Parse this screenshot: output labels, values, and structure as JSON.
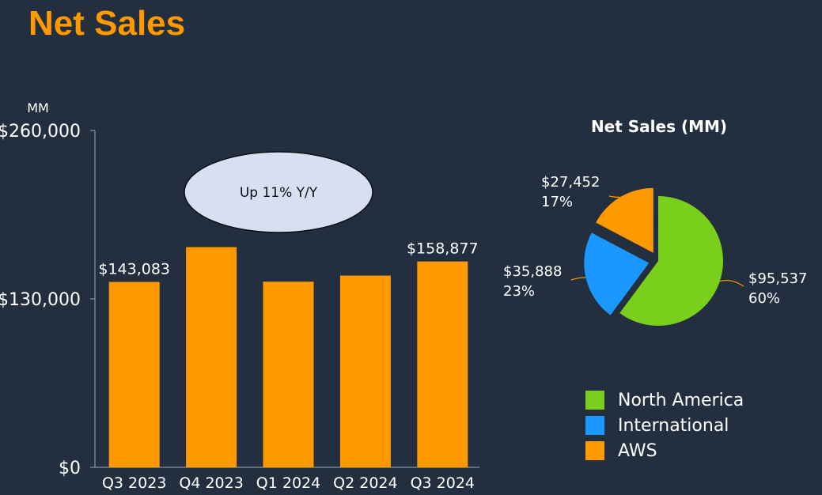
{
  "page_title": "Net Sales",
  "chart_data": [
    {
      "type": "bar",
      "unit_label": "MM",
      "categories": [
        "Q3 2023",
        "Q4 2023",
        "Q1 2024",
        "Q2 2024",
        "Q3 2024"
      ],
      "values": [
        143083,
        169961,
        143313,
        147977,
        158877
      ],
      "data_labels": [
        "$143,083",
        "",
        "",
        "",
        "$158,877"
      ],
      "ylim": [
        0,
        260000
      ],
      "yticks": [
        0,
        130000,
        260000
      ],
      "ytick_labels": [
        "$0",
        "$130,000",
        "$260,000"
      ],
      "bar_color": "#ff9900",
      "annotation": "Up 11% Y/Y",
      "annotation_color": "#d7e0f0",
      "grid": false
    },
    {
      "type": "pie",
      "title": "Net Sales (MM)",
      "slices": [
        {
          "name": "North America",
          "value": 95537,
          "value_label": "$95,537",
          "percent_label": "60%",
          "color": "#7ace1c",
          "exploded": false
        },
        {
          "name": "International",
          "value": 35888,
          "value_label": "$35,888",
          "percent_label": "23%",
          "color": "#1a98ff",
          "exploded": true
        },
        {
          "name": "AWS",
          "value": 27452,
          "value_label": "$27,452",
          "percent_label": "17%",
          "color": "#ff9900",
          "exploded": true
        }
      ],
      "legend_position": "bottom-right",
      "leader_line_color": "#ff9900"
    }
  ]
}
